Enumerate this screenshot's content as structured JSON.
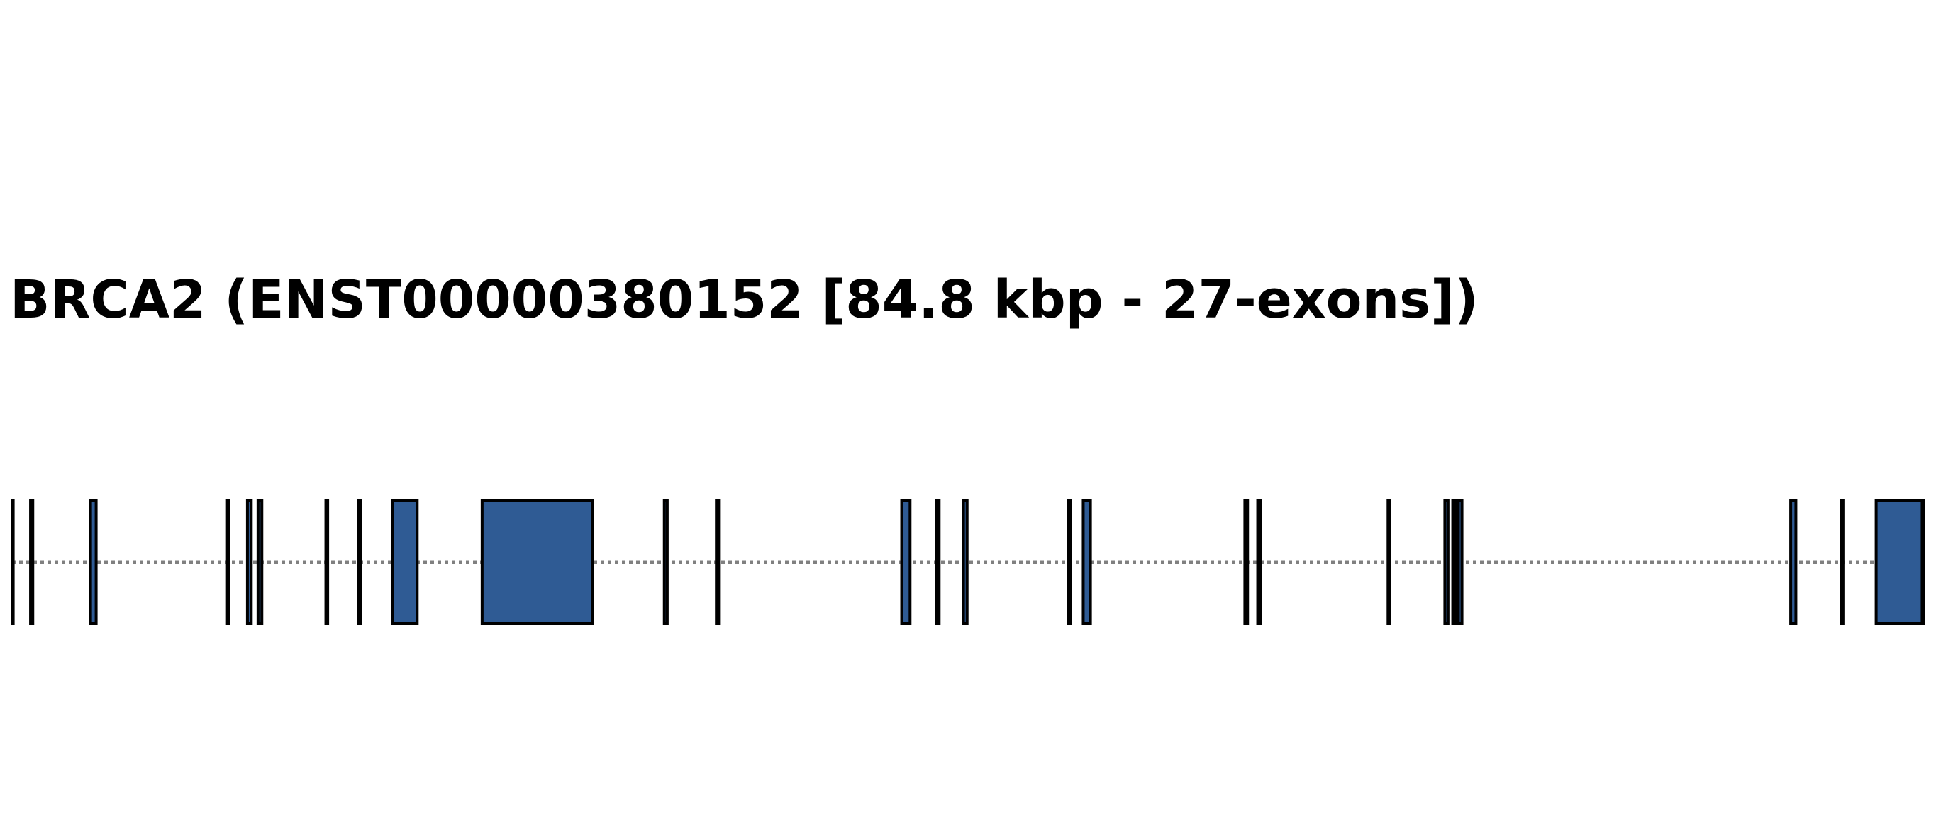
{
  "title": "BRCA2 (ENST00000380152 [84.8 kbp - 27-exons])",
  "colors": {
    "exon_fill": "#2f5b94",
    "exon_stroke": "#000000",
    "intron_line": "#808080"
  },
  "gene": {
    "name": "BRCA2",
    "transcript": "ENST00000380152",
    "length_kbp": 84.8,
    "exon_count": 27,
    "intron_style": "dotted",
    "exons": [
      {
        "index": 1,
        "start_kbp": 0.0,
        "end_kbp": 0.05
      },
      {
        "index": 2,
        "start_kbp": 0.82,
        "end_kbp": 0.92
      },
      {
        "index": 3,
        "start_kbp": 3.48,
        "end_kbp": 3.73
      },
      {
        "index": 4,
        "start_kbp": 9.52,
        "end_kbp": 9.62
      },
      {
        "index": 5,
        "start_kbp": 10.44,
        "end_kbp": 10.61
      },
      {
        "index": 6,
        "start_kbp": 10.91,
        "end_kbp": 11.08
      },
      {
        "index": 7,
        "start_kbp": 13.92,
        "end_kbp": 14.0
      },
      {
        "index": 8,
        "start_kbp": 15.36,
        "end_kbp": 15.46
      },
      {
        "index": 9,
        "start_kbp": 16.86,
        "end_kbp": 17.97
      },
      {
        "index": 10,
        "start_kbp": 20.85,
        "end_kbp": 25.76
      },
      {
        "index": 11,
        "start_kbp": 28.93,
        "end_kbp": 29.06
      },
      {
        "index": 12,
        "start_kbp": 31.24,
        "end_kbp": 31.34
      },
      {
        "index": 13,
        "start_kbp": 39.46,
        "end_kbp": 39.83
      },
      {
        "index": 14,
        "start_kbp": 40.99,
        "end_kbp": 41.12
      },
      {
        "index": 15,
        "start_kbp": 42.2,
        "end_kbp": 42.36
      },
      {
        "index": 16,
        "start_kbp": 46.84,
        "end_kbp": 46.96
      },
      {
        "index": 17,
        "start_kbp": 47.51,
        "end_kbp": 47.83
      },
      {
        "index": 18,
        "start_kbp": 54.68,
        "end_kbp": 54.8
      },
      {
        "index": 19,
        "start_kbp": 55.25,
        "end_kbp": 55.38
      },
      {
        "index": 20,
        "start_kbp": 61.03,
        "end_kbp": 61.1
      },
      {
        "index": 21,
        "start_kbp": 63.55,
        "end_kbp": 63.69
      },
      {
        "index": 22,
        "start_kbp": 63.9,
        "end_kbp": 64.04
      },
      {
        "index": 23,
        "start_kbp": 64.15,
        "end_kbp": 64.31
      },
      {
        "index": 24,
        "start_kbp": 78.89,
        "end_kbp": 79.12
      },
      {
        "index": 25,
        "start_kbp": 81.13,
        "end_kbp": 81.21
      },
      {
        "index": 26,
        "start_kbp": 82.68,
        "end_kbp": 84.72
      },
      {
        "index": 27,
        "start_kbp": 84.75,
        "end_kbp": 84.8
      }
    ]
  }
}
